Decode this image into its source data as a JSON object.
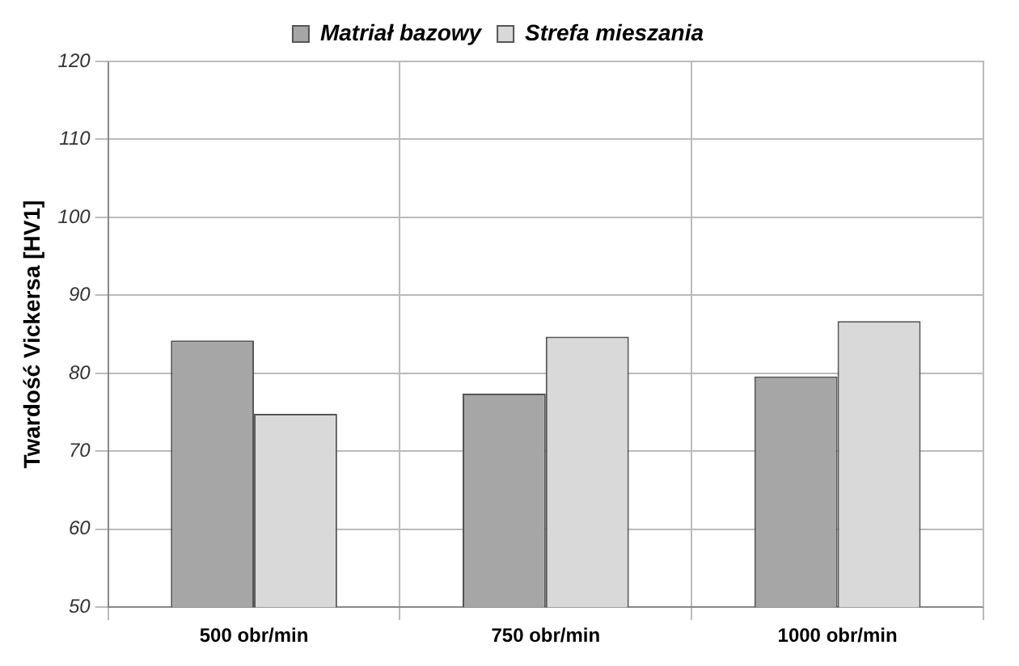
{
  "chart_data": {
    "type": "bar",
    "ylabel": "Twardość Vickersa [HV1]",
    "categories": [
      "500 obr/min",
      "750 obr/min",
      "1000 obr/min"
    ],
    "series": [
      {
        "name": "Matriał bazowy",
        "color": "#a6a6a6",
        "values": [
          84.2,
          77.4,
          79.6
        ]
      },
      {
        "name": "Strefa mieszania",
        "color": "#d9d9d9",
        "values": [
          74.8,
          84.7,
          86.7
        ]
      }
    ],
    "ylim": [
      50,
      120
    ],
    "yticks": [
      50,
      60,
      70,
      80,
      90,
      100,
      110,
      120
    ],
    "grid": true,
    "legend": "top"
  }
}
